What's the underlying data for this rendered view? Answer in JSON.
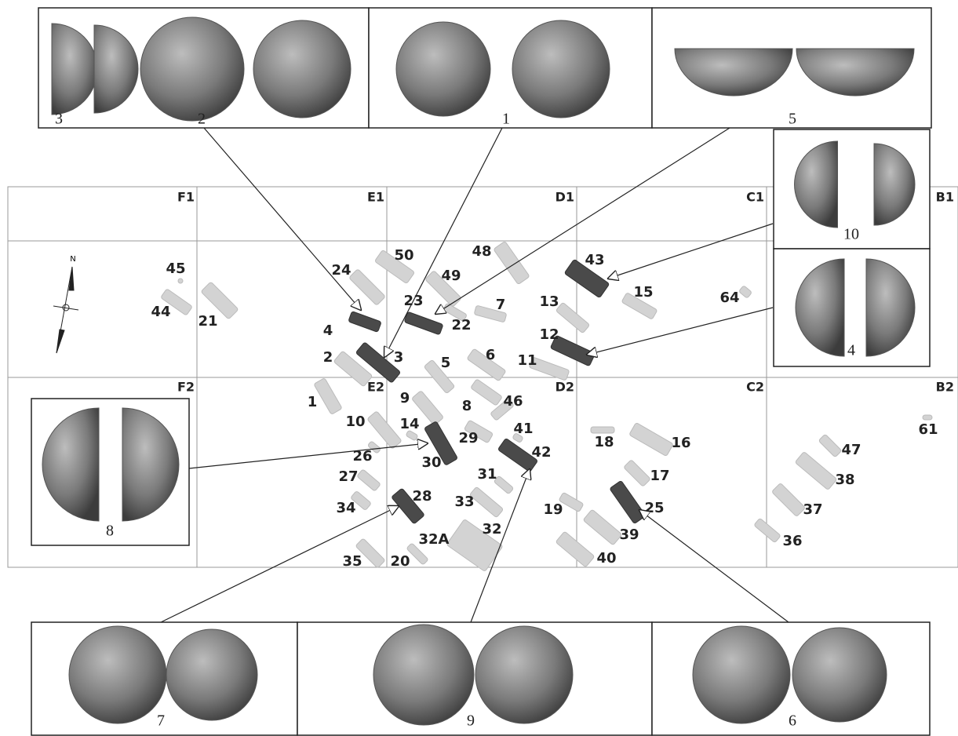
{
  "grid_labels": [
    "F1",
    "E1",
    "D1",
    "C1",
    "B1",
    "F2",
    "E2",
    "D2",
    "C2",
    "B2"
  ],
  "north": "N",
  "graves": [
    "45",
    "44",
    "21",
    "24",
    "50",
    "48",
    "49",
    "23",
    "4",
    "22",
    "7",
    "13",
    "43",
    "15",
    "64",
    "12",
    "11",
    "6",
    "5",
    "2",
    "3",
    "1",
    "9",
    "8",
    "46",
    "14",
    "10",
    "29",
    "41",
    "30",
    "42",
    "26",
    "27",
    "31",
    "33",
    "28",
    "34",
    "32A",
    "32",
    "35",
    "20",
    "18",
    "16",
    "17",
    "25",
    "19",
    "39",
    "40",
    "47",
    "38",
    "37",
    "36",
    "61"
  ],
  "panels": [
    "3",
    "2",
    "1",
    "5",
    "10",
    "4",
    "8",
    "7",
    "9",
    "6"
  ]
}
